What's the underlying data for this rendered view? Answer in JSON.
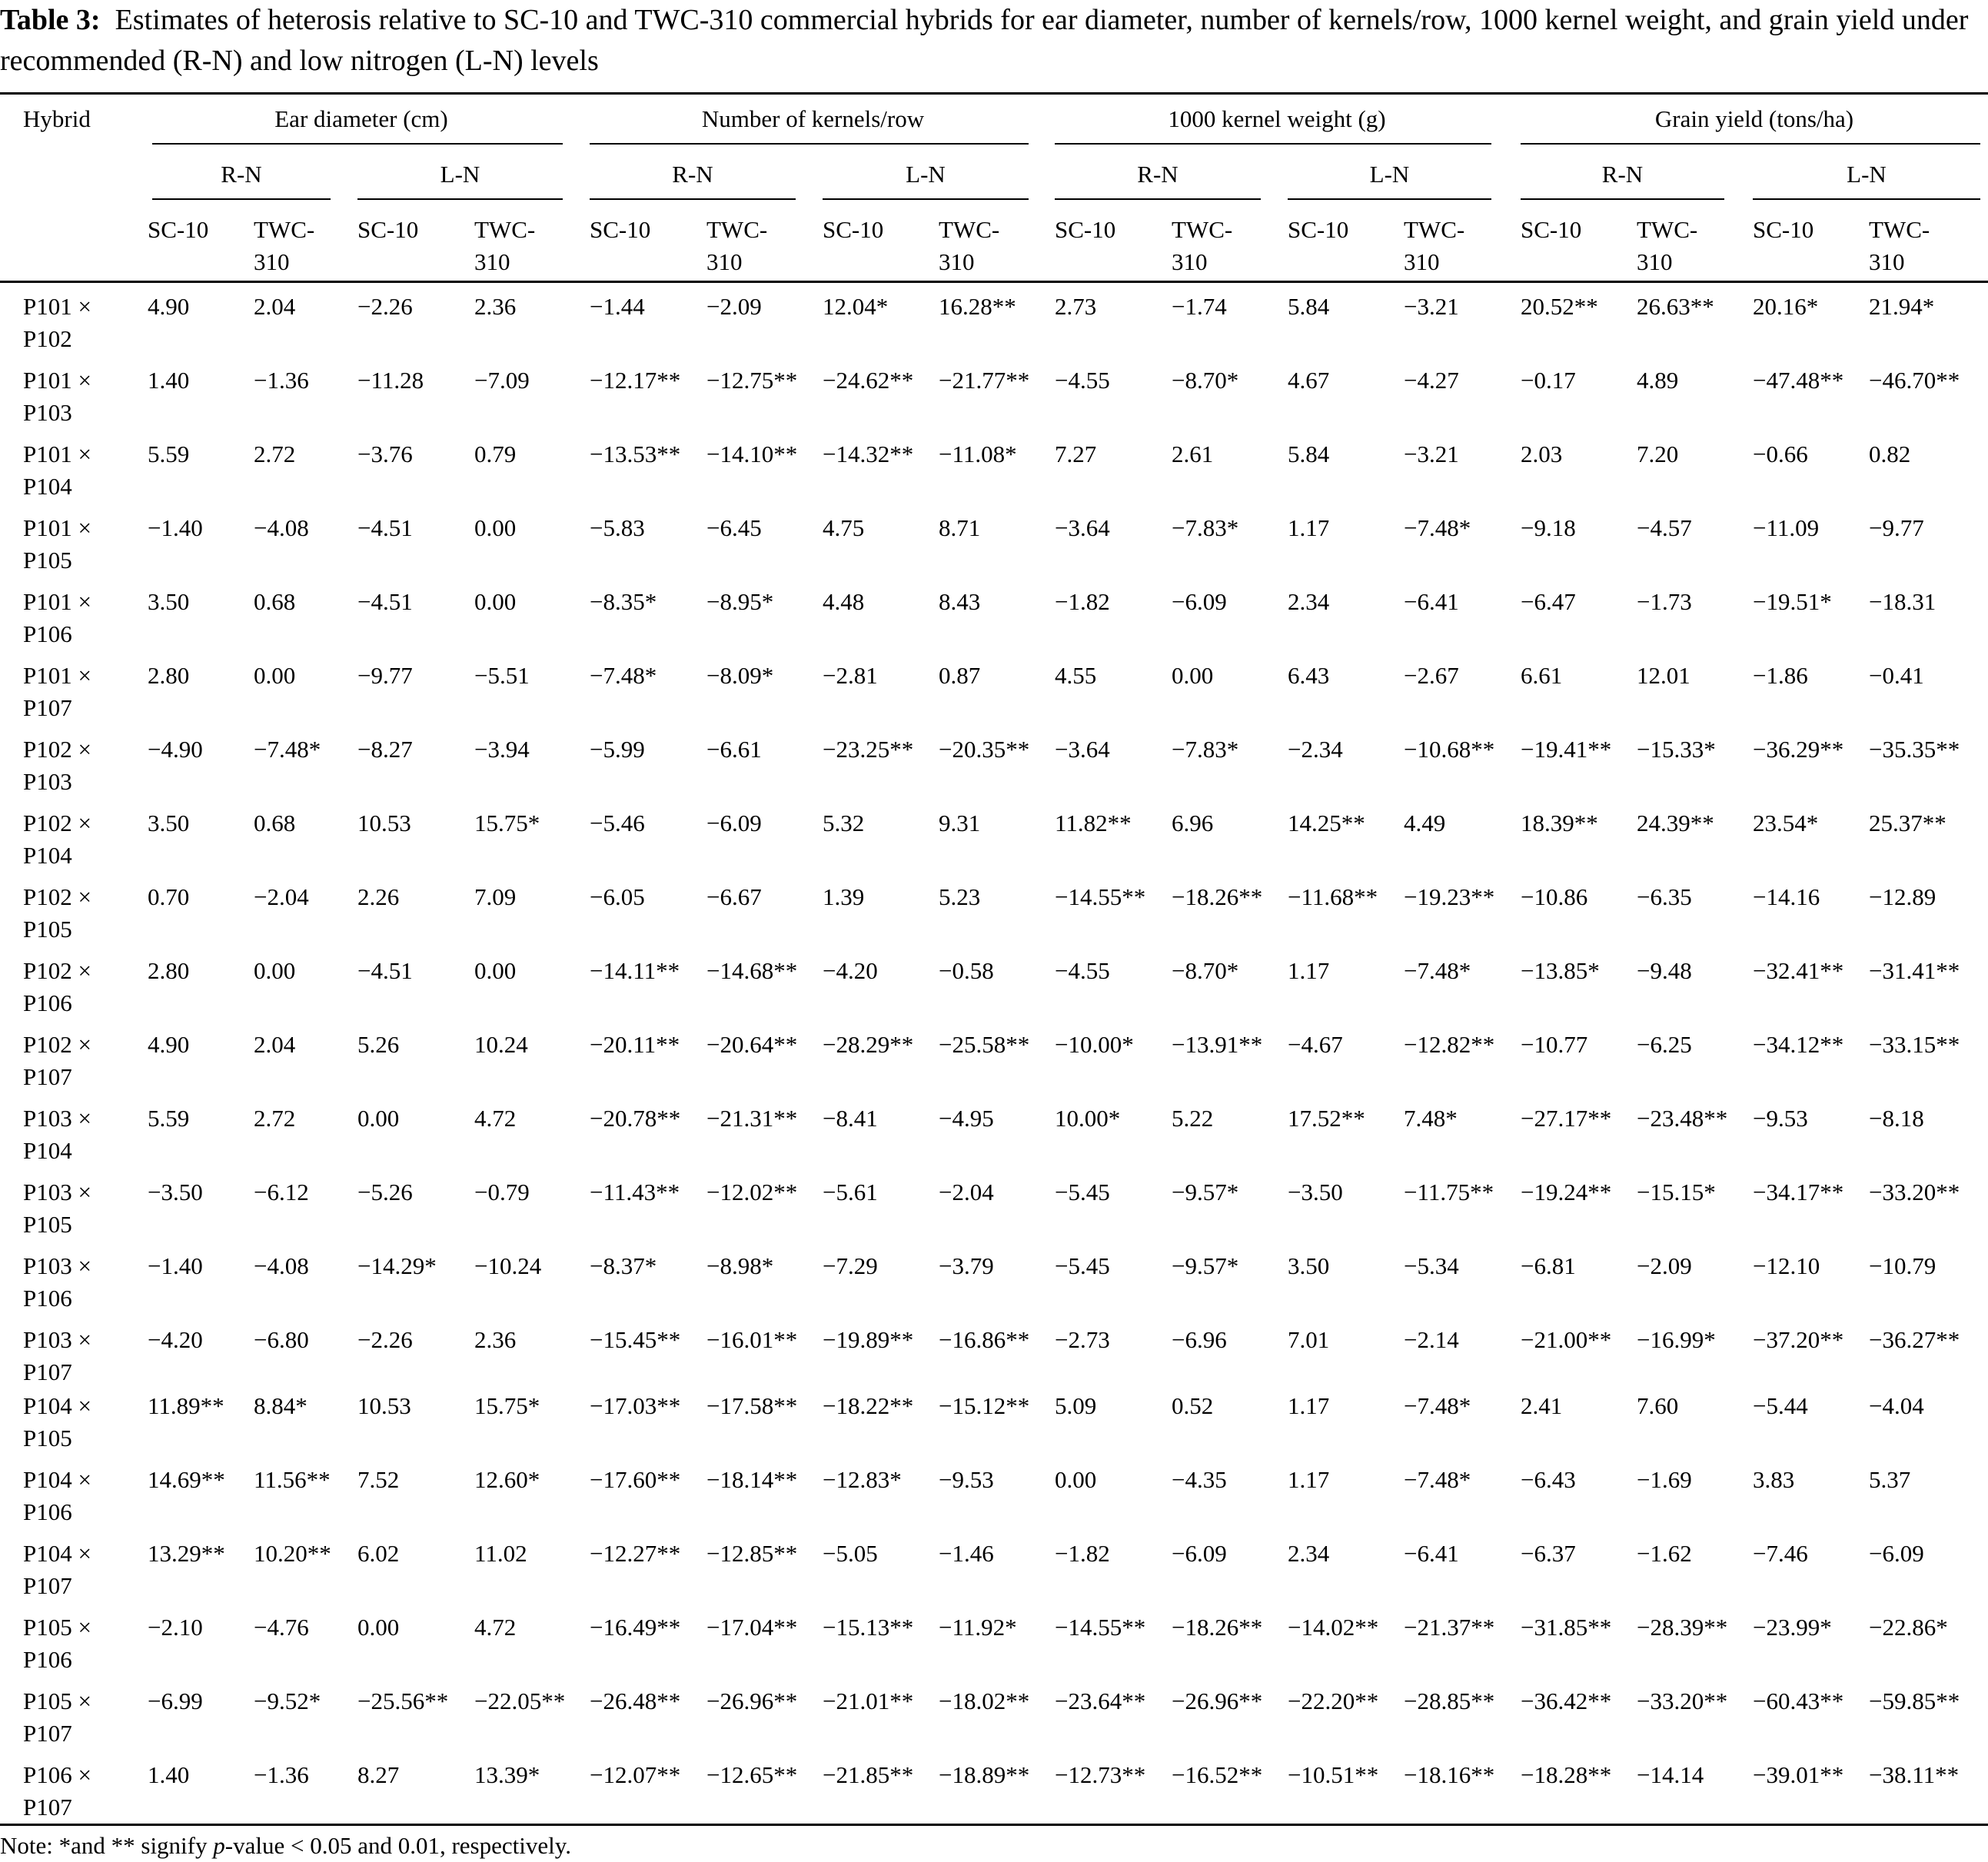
{
  "caption": {
    "label": "Table 3:",
    "text": "Estimates of heterosis relative to SC-10 and TWC-310 commercial hybrids for ear diameter, number of kernels/row, 1000 kernel weight, and grain yield under recommended (R-N) and low nitrogen (L-N) levels"
  },
  "header": {
    "hybrid": "Hybrid",
    "traits": [
      "Ear diameter (cm)",
      "Number of kernels/row",
      "1000 kernel weight (g)",
      "Grain yield (tons/ha)"
    ],
    "levels": [
      "R-N",
      "L-N"
    ],
    "checks": [
      [
        "SC-10"
      ],
      [
        "TWC-",
        "310"
      ]
    ]
  },
  "rows": [
    {
      "hybrid": [
        "P101 ×",
        "P102"
      ],
      "values": [
        "4.90",
        "2.04",
        "−2.26",
        "2.36",
        "−1.44",
        "−2.09",
        "12.04*",
        "16.28**",
        "2.73",
        "−1.74",
        "5.84",
        "−3.21",
        "20.52**",
        "26.63**",
        "20.16*",
        "21.94*"
      ]
    },
    {
      "hybrid": [
        "P101 ×",
        "P103"
      ],
      "values": [
        "1.40",
        "−1.36",
        "−11.28",
        "−7.09",
        "−12.17**",
        "−12.75**",
        "−24.62**",
        "−21.77**",
        "−4.55",
        "−8.70*",
        "4.67",
        "−4.27",
        "−0.17",
        "4.89",
        "−47.48**",
        "−46.70**"
      ]
    },
    {
      "hybrid": [
        "P101 ×",
        "P104"
      ],
      "values": [
        "5.59",
        "2.72",
        "−3.76",
        "0.79",
        "−13.53**",
        "−14.10**",
        "−14.32**",
        "−11.08*",
        "7.27",
        "2.61",
        "5.84",
        "−3.21",
        "2.03",
        "7.20",
        "−0.66",
        "0.82"
      ]
    },
    {
      "hybrid": [
        "P101 ×",
        "P105"
      ],
      "values": [
        "−1.40",
        "−4.08",
        "−4.51",
        "0.00",
        "−5.83",
        "−6.45",
        "4.75",
        "8.71",
        "−3.64",
        "−7.83*",
        "1.17",
        "−7.48*",
        "−9.18",
        "−4.57",
        "−11.09",
        "−9.77"
      ]
    },
    {
      "hybrid": [
        "P101 ×",
        "P106"
      ],
      "values": [
        "3.50",
        "0.68",
        "−4.51",
        "0.00",
        "−8.35*",
        "−8.95*",
        "4.48",
        "8.43",
        "−1.82",
        "−6.09",
        "2.34",
        "−6.41",
        "−6.47",
        "−1.73",
        "−19.51*",
        "−18.31"
      ]
    },
    {
      "hybrid": [
        "P101 ×",
        "P107"
      ],
      "values": [
        "2.80",
        "0.00",
        "−9.77",
        "−5.51",
        "−7.48*",
        "−8.09*",
        "−2.81",
        "0.87",
        "4.55",
        "0.00",
        "6.43",
        "−2.67",
        "6.61",
        "12.01",
        "−1.86",
        "−0.41"
      ]
    },
    {
      "hybrid": [
        "P102 ×",
        "P103"
      ],
      "values": [
        "−4.90",
        "−7.48*",
        "−8.27",
        "−3.94",
        "−5.99",
        "−6.61",
        "−23.25**",
        "−20.35**",
        "−3.64",
        "−7.83*",
        "−2.34",
        "−10.68**",
        "−19.41**",
        "−15.33*",
        "−36.29**",
        "−35.35**"
      ]
    },
    {
      "hybrid": [
        "P102 ×",
        "P104"
      ],
      "values": [
        "3.50",
        "0.68",
        "10.53",
        "15.75*",
        "−5.46",
        "−6.09",
        "5.32",
        "9.31",
        "11.82**",
        "6.96",
        "14.25**",
        "4.49",
        "18.39**",
        "24.39**",
        "23.54*",
        "25.37**"
      ]
    },
    {
      "hybrid": [
        "P102 ×",
        "P105"
      ],
      "values": [
        "0.70",
        "−2.04",
        "2.26",
        "7.09",
        "−6.05",
        "−6.67",
        "1.39",
        "5.23",
        "−14.55**",
        "−18.26**",
        "−11.68**",
        "−19.23**",
        "−10.86",
        "−6.35",
        "−14.16",
        "−12.89"
      ]
    },
    {
      "hybrid": [
        "P102 ×",
        "P106"
      ],
      "values": [
        "2.80",
        "0.00",
        "−4.51",
        "0.00",
        "−14.11**",
        "−14.68**",
        "−4.20",
        "−0.58",
        "−4.55",
        "−8.70*",
        "1.17",
        "−7.48*",
        "−13.85*",
        "−9.48",
        "−32.41**",
        "−31.41**"
      ]
    },
    {
      "hybrid": [
        "P102 ×",
        "P107"
      ],
      "values": [
        "4.90",
        "2.04",
        "5.26",
        "10.24",
        "−20.11**",
        "−20.64**",
        "−28.29**",
        "−25.58**",
        "−10.00*",
        "−13.91**",
        "−4.67",
        "−12.82**",
        "−10.77",
        "−6.25",
        "−34.12**",
        "−33.15**"
      ]
    },
    {
      "hybrid": [
        "P103 ×",
        "P104"
      ],
      "values": [
        "5.59",
        "2.72",
        "0.00",
        "4.72",
        "−20.78**",
        "−21.31**",
        "−8.41",
        "−4.95",
        "10.00*",
        "5.22",
        "17.52**",
        "7.48*",
        "−27.17**",
        "−23.48**",
        "−9.53",
        "−8.18"
      ]
    },
    {
      "hybrid": [
        "P103 ×",
        "P105"
      ],
      "values": [
        "−3.50",
        "−6.12",
        "−5.26",
        "−0.79",
        "−11.43**",
        "−12.02**",
        "−5.61",
        "−2.04",
        "−5.45",
        "−9.57*",
        "−3.50",
        "−11.75**",
        "−19.24**",
        "−15.15*",
        "−34.17**",
        "−33.20**"
      ]
    },
    {
      "hybrid": [
        "P103 ×",
        "P106"
      ],
      "values": [
        "−1.40",
        "−4.08",
        "−14.29*",
        "−10.24",
        "−8.37*",
        "−8.98*",
        "−7.29",
        "−3.79",
        "−5.45",
        "−9.57*",
        "3.50",
        "−5.34",
        "−6.81",
        "−2.09",
        "−12.10",
        "−10.79"
      ]
    },
    {
      "hybrid": [
        "P103 ×",
        "P107"
      ],
      "values": [
        "−4.20",
        "−6.80",
        "−2.26",
        "2.36",
        "−15.45**",
        "−16.01**",
        "−19.89**",
        "−16.86**",
        "−2.73",
        "−6.96",
        "7.01",
        "−2.14",
        "−21.00**",
        "−16.99*",
        "−37.20**",
        "−36.27**"
      ]
    },
    {
      "hybrid": [
        "P104 ×",
        "P105"
      ],
      "values": [
        "11.89**",
        "8.84*",
        "10.53",
        "15.75*",
        "−17.03**",
        "−17.58**",
        "−18.22**",
        "−15.12**",
        "5.09",
        "0.52",
        "1.17",
        "−7.48*",
        "2.41",
        "7.60",
        "−5.44",
        "−4.04"
      ]
    },
    {
      "hybrid": [
        "P104 ×",
        "P106"
      ],
      "values": [
        "14.69**",
        "11.56**",
        "7.52",
        "12.60*",
        "−17.60**",
        "−18.14**",
        "−12.83*",
        "−9.53",
        "0.00",
        "−4.35",
        "1.17",
        "−7.48*",
        "−6.43",
        "−1.69",
        "3.83",
        "5.37"
      ]
    },
    {
      "hybrid": [
        "P104 ×",
        "P107"
      ],
      "values": [
        "13.29**",
        "10.20**",
        "6.02",
        "11.02",
        "−12.27**",
        "−12.85**",
        "−5.05",
        "−1.46",
        "−1.82",
        "−6.09",
        "2.34",
        "−6.41",
        "−6.37",
        "−1.62",
        "−7.46",
        "−6.09"
      ]
    },
    {
      "hybrid": [
        "P105 ×",
        "P106"
      ],
      "values": [
        "−2.10",
        "−4.76",
        "0.00",
        "4.72",
        "−16.49**",
        "−17.04**",
        "−15.13**",
        "−11.92*",
        "−14.55**",
        "−18.26**",
        "−14.02**",
        "−21.37**",
        "−31.85**",
        "−28.39**",
        "−23.99*",
        "−22.86*"
      ]
    },
    {
      "hybrid": [
        "P105 ×",
        "P107"
      ],
      "values": [
        "−6.99",
        "−9.52*",
        "−25.56**",
        "−22.05**",
        "−26.48**",
        "−26.96**",
        "−21.01**",
        "−18.02**",
        "−23.64**",
        "−26.96**",
        "−22.20**",
        "−28.85**",
        "−36.42**",
        "−33.20**",
        "−60.43**",
        "−59.85**"
      ]
    },
    {
      "hybrid": [
        "P106 ×",
        "P107"
      ],
      "values": [
        "1.40",
        "−1.36",
        "8.27",
        "13.39*",
        "−12.07**",
        "−12.65**",
        "−21.85**",
        "−18.89**",
        "−12.73**",
        "−16.52**",
        "−10.51**",
        "−18.16**",
        "−18.28**",
        "−14.14",
        "−39.01**",
        "−38.11**"
      ]
    }
  ],
  "note": {
    "prefix": "Note: *and ** signify ",
    "italic": "p",
    "suffix": "-value < 0.05 and 0.01, respectively."
  }
}
